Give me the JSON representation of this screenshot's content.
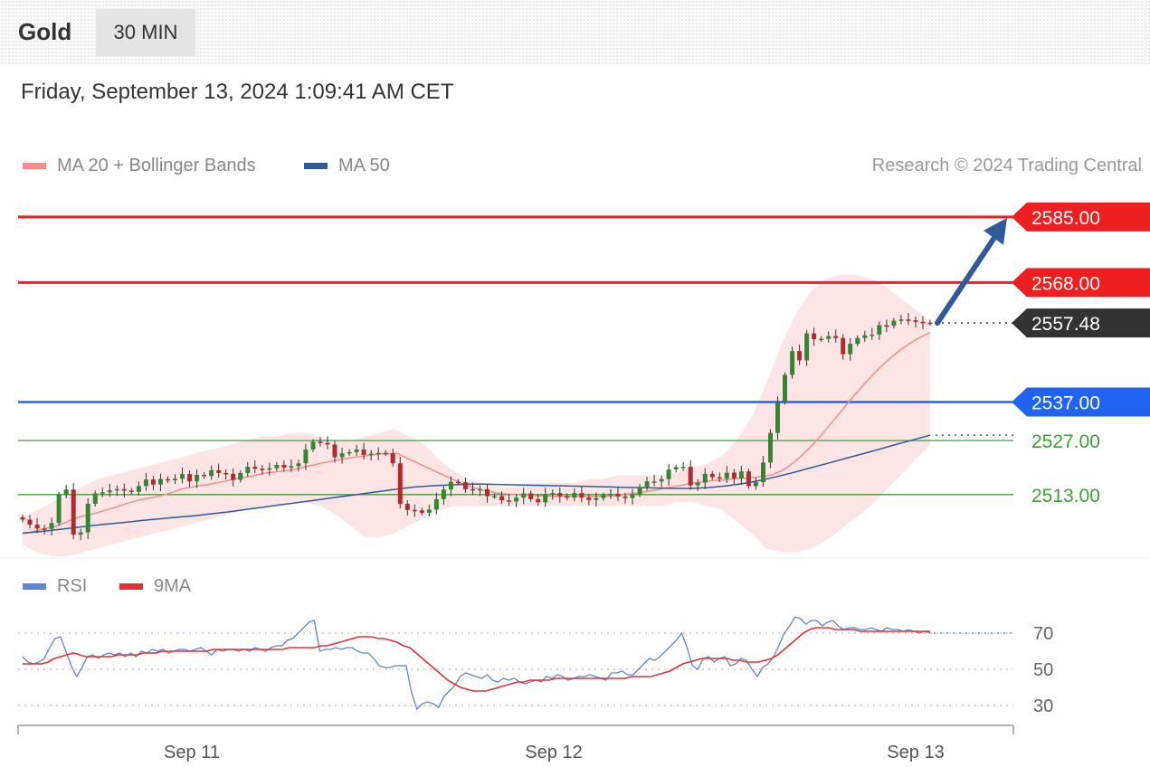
{
  "header": {
    "instrument": "Gold",
    "timeframe": "30 MIN",
    "datetime": "Friday, September 13, 2024 1:09:41 AM CET"
  },
  "legend_main": [
    {
      "label": "MA 20 + Bollinger Bands",
      "color": "#f58c8c"
    },
    {
      "label": "MA 50",
      "color": "#2f5b9c"
    }
  ],
  "legend_rsi": [
    {
      "label": "RSI",
      "color": "#5b86d8"
    },
    {
      "label": "9MA",
      "color": "#e53030"
    }
  ],
  "credit": "Research © 2024 Trading Central",
  "colors": {
    "resistance": "#ef1f1f",
    "support": "#1f63f0",
    "minor_level": "#3ca034",
    "candle_up": "#2f8a2f",
    "candle_down": "#b32a2a",
    "bollinger_fill": "#fde2e2",
    "arrow": "#2f5b9c"
  },
  "chart_data": [
    {
      "type": "candlestick",
      "title": "Gold",
      "timeframe": "30 MIN",
      "ylim": [
        2497,
        2592
      ],
      "x_ticks": [
        "Sep 11",
        "Sep 12",
        "Sep 13"
      ],
      "levels": [
        {
          "value": 2585.0,
          "label": "2585.00",
          "kind": "resistance"
        },
        {
          "value": 2568.0,
          "label": "2568.00",
          "kind": "resistance"
        },
        {
          "value": 2557.48,
          "label": "2557.48",
          "kind": "last_price"
        },
        {
          "value": 2537.0,
          "label": "2537.00",
          "kind": "support"
        },
        {
          "value": 2527.0,
          "label": "2527.00",
          "kind": "minor"
        },
        {
          "value": 2513.0,
          "label": "2513.00",
          "kind": "minor"
        }
      ],
      "forecast_target": 2585.0,
      "close_series": [
        2506.5,
        2505.2,
        2504.2,
        2504.1,
        2505.6,
        2513.0,
        2514.3,
        2502.6,
        2503.2,
        2510.6,
        2513.3,
        2513.6,
        2514.1,
        2514.4,
        2514.0,
        2513.7,
        2515.2,
        2516.9,
        2515.6,
        2517.0,
        2516.7,
        2517.1,
        2518.3,
        2516.4,
        2518.1,
        2517.8,
        2519.3,
        2518.6,
        2518.4,
        2516.8,
        2518.6,
        2520.2,
        2519.7,
        2519.6,
        2519.8,
        2520.7,
        2520.0,
        2520.4,
        2521.1,
        2524.7,
        2526.7,
        2526.4,
        2526.0,
        2522.7,
        2523.7,
        2524.0,
        2524.7,
        2523.3,
        2523.6,
        2523.8,
        2523.7,
        2521.1,
        2510.6,
        2509.0,
        2508.9,
        2508.3,
        2509.1,
        2511.8,
        2514.3,
        2516.3,
        2516.2,
        2514.4,
        2514.1,
        2514.4,
        2512.6,
        2512.6,
        2511.5,
        2511.2,
        2512.2,
        2513.3,
        2511.8,
        2511.0,
        2513.1,
        2513.4,
        2512.6,
        2512.2,
        2513.4,
        2512.2,
        2511.6,
        2512.1,
        2512.8,
        2513.2,
        2512.5,
        2512.1,
        2513.0,
        2515.0,
        2516.4,
        2516.4,
        2517.0,
        2519.5,
        2520.1,
        2520.2,
        2515.4,
        2516.1,
        2518.4,
        2517.5,
        2517.2,
        2518.7,
        2517.2,
        2519.0,
        2515.2,
        2516.2,
        2521.3,
        2529.0,
        2537.0,
        2544.0,
        2550.2,
        2547.8,
        2554.8,
        2553.3,
        2553.4,
        2554.1,
        2553.6,
        2549.4,
        2552.1,
        2553.6,
        2554.3,
        2554.5,
        2556.9,
        2556.8,
        2558.1,
        2558.4,
        2558.2,
        2557.8,
        2557.6,
        2557.5
      ],
      "ma20": [
        2502.9,
        2503.2,
        2503.8,
        2504.3,
        2504.8,
        2505.6,
        2506.6,
        2507.3,
        2507.8,
        2508.3,
        2509.0,
        2509.6,
        2510.3,
        2511.0,
        2511.6,
        2512.0,
        2512.4,
        2512.9,
        2513.6,
        2514.4,
        2514.8,
        2515.2,
        2515.5,
        2515.9,
        2516.3,
        2516.8,
        2517.3,
        2517.6,
        2518.0,
        2518.5,
        2518.8,
        2519.0,
        2519.3,
        2519.7,
        2520.3,
        2520.7,
        2521.2,
        2521.6,
        2522.0,
        2522.4,
        2522.7,
        2523.0,
        2523.3,
        2523.5,
        2523.6,
        2523.7,
        2522.6,
        2521.6,
        2520.6,
        2519.6,
        2518.6,
        2517.6,
        2516.6,
        2515.6,
        2514.9,
        2514.3,
        2513.8,
        2513.4,
        2513.2,
        2513.0,
        2512.9,
        2512.8,
        2512.7,
        2512.6,
        2512.5,
        2512.5,
        2512.5,
        2512.5,
        2512.5,
        2512.5,
        2512.6,
        2512.7,
        2512.9,
        2513.2,
        2513.5,
        2513.8,
        2514.2,
        2514.6,
        2515.0,
        2515.4,
        2515.8,
        2516.1,
        2516.4,
        2516.6,
        2516.8,
        2517.0,
        2517.2,
        2517.3,
        2517.5,
        2517.7,
        2518.1,
        2519.0,
        2520.3,
        2522.0,
        2524.0,
        2526.2,
        2528.6,
        2531.2,
        2533.8,
        2536.4,
        2539.0,
        2541.5,
        2543.8,
        2546.0,
        2548.0,
        2549.8,
        2551.4,
        2552.8,
        2554.0,
        2555.0
      ],
      "ma50": [
        2503.0,
        2503.4,
        2503.9,
        2504.4,
        2504.9,
        2505.4,
        2505.8,
        2506.3,
        2506.7,
        2507.1,
        2507.5,
        2508.0,
        2508.5,
        2509.1,
        2509.7,
        2510.3,
        2510.9,
        2511.5,
        2512.1,
        2512.7,
        2513.3,
        2513.9,
        2514.5,
        2515.0,
        2515.3,
        2515.5,
        2515.7,
        2515.7,
        2515.6,
        2515.5,
        2515.4,
        2515.3,
        2515.2,
        2515.1,
        2515.0,
        2514.9,
        2514.8,
        2514.7,
        2514.6,
        2514.6,
        2514.8,
        2515.2,
        2515.8,
        2516.6,
        2517.6,
        2518.7,
        2519.9,
        2521.1,
        2522.3,
        2523.5,
        2524.7,
        2526.0,
        2527.2,
        2528.4
      ],
      "bollinger_upper": [
        2507,
        2509,
        2511,
        2513,
        2515,
        2517,
        2518,
        2519,
        2520,
        2521,
        2522,
        2523,
        2524,
        2525,
        2526,
        2527,
        2528,
        2528,
        2529,
        2529,
        2528,
        2527,
        2527,
        2528,
        2529,
        2530,
        2528,
        2526,
        2522,
        2519,
        2517,
        2516,
        2515,
        2515,
        2516,
        2516,
        2516,
        2516,
        2517,
        2517,
        2518,
        2518,
        2518,
        2518,
        2519,
        2520,
        2521,
        2523,
        2527,
        2533,
        2542,
        2552,
        2560,
        2566,
        2569,
        2570,
        2570,
        2569,
        2567,
        2564,
        2561,
        2558
      ],
      "bollinger_lower": [
        2500,
        2498,
        2497,
        2497,
        2498,
        2499,
        2500,
        2501,
        2502,
        2503,
        2504,
        2505,
        2506,
        2507,
        2508,
        2509,
        2510,
        2510,
        2511,
        2511,
        2510,
        2508,
        2505,
        2502,
        2502,
        2503,
        2505,
        2507,
        2509,
        2510,
        2510,
        2510,
        2510,
        2510,
        2510,
        2510,
        2510,
        2510,
        2510,
        2510,
        2510,
        2510,
        2510,
        2510,
        2511,
        2511,
        2510,
        2509,
        2506,
        2503,
        2499,
        2498,
        2498,
        2499,
        2501,
        2504,
        2507,
        2510,
        2514,
        2518,
        2522,
        2526
      ]
    },
    {
      "type": "line",
      "title": "RSI",
      "ylim": [
        25,
        80
      ],
      "y_ticks": [
        70,
        50,
        30
      ],
      "x_ticks": [
        "Sep 11",
        "Sep 12",
        "Sep 13"
      ],
      "series": [
        {
          "name": "RSI",
          "values": [
            57,
            54,
            53,
            54,
            56,
            62,
            67,
            68,
            60,
            52,
            46,
            51,
            57,
            58,
            56,
            58,
            59,
            58,
            59,
            57,
            59,
            57,
            60,
            59,
            61,
            60,
            61,
            59,
            60,
            61,
            61,
            60,
            61,
            62,
            60,
            58,
            61,
            60,
            61,
            61,
            60,
            61,
            60,
            62,
            61,
            60,
            62,
            63,
            63,
            66,
            67,
            70,
            73,
            76,
            77,
            60,
            61,
            61,
            62,
            61,
            62,
            62,
            60,
            59,
            59,
            56,
            52,
            51,
            51,
            52,
            52,
            52,
            37,
            28,
            31,
            32,
            31,
            29,
            35,
            38,
            41,
            46,
            48,
            47,
            46,
            45,
            47,
            44,
            43,
            45,
            44,
            45,
            43,
            42,
            43,
            44,
            43,
            46,
            45,
            47,
            46,
            44,
            45,
            46,
            46,
            47,
            46,
            45,
            44,
            48,
            48,
            49,
            47,
            47,
            50,
            53,
            56,
            55,
            57,
            60,
            63,
            66,
            70,
            62,
            52,
            50,
            56,
            57,
            54,
            56,
            57,
            52,
            53,
            56,
            55,
            50,
            46,
            51,
            53,
            57,
            63,
            70,
            74,
            79,
            78,
            75,
            77,
            77,
            74,
            76,
            77,
            74,
            72,
            73,
            73,
            72,
            72,
            73,
            72,
            71,
            73,
            72,
            72,
            71,
            72,
            71,
            70,
            71,
            70
          ]
        },
        {
          "name": "9MA",
          "values": [
            53,
            53,
            53,
            53,
            54,
            56,
            57,
            58,
            59,
            58,
            57,
            57,
            57,
            57,
            57,
            58,
            58,
            58,
            58,
            59,
            59,
            59,
            60,
            60,
            60,
            60,
            60,
            60,
            60,
            60,
            61,
            61,
            61,
            61,
            61,
            61,
            61,
            61,
            61,
            61,
            61,
            61,
            62,
            62,
            62,
            62,
            62,
            63,
            63,
            64,
            65,
            66,
            67,
            68,
            68,
            68,
            67,
            67,
            66,
            65,
            63,
            62,
            59,
            56,
            53,
            50,
            47,
            44,
            42,
            40,
            39,
            38,
            38,
            38,
            39,
            40,
            41,
            42,
            43,
            43,
            44,
            44,
            44,
            44,
            45,
            45,
            45,
            45,
            45,
            45,
            45,
            45,
            45,
            45,
            45,
            45,
            46,
            46,
            46,
            46,
            47,
            48,
            49,
            51,
            53,
            54,
            55,
            56,
            56,
            56,
            56,
            56,
            55,
            55,
            54,
            54,
            54,
            55,
            56,
            58,
            61,
            64,
            67,
            70,
            72,
            73,
            73,
            73,
            72,
            72,
            72,
            72,
            71,
            71,
            71,
            71,
            71,
            71,
            71,
            71,
            71,
            71,
            71,
            71
          ]
        }
      ]
    }
  ]
}
